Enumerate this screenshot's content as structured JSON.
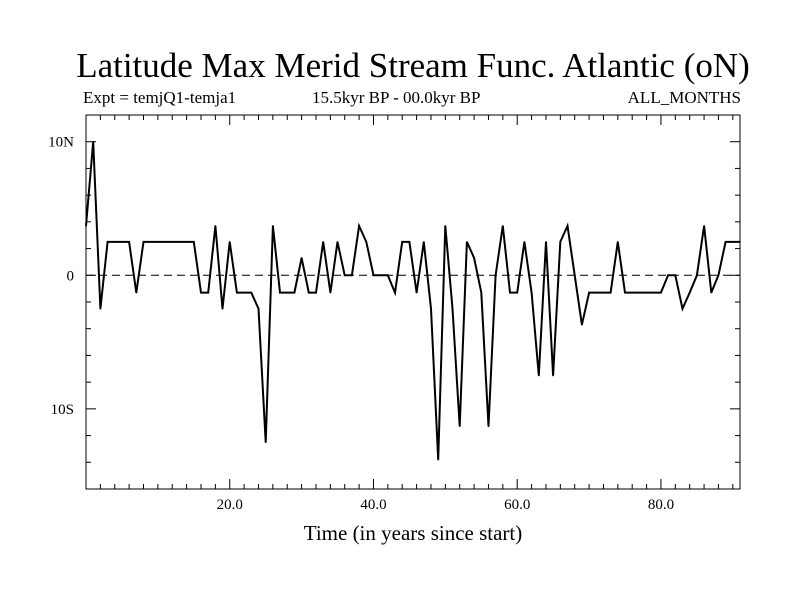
{
  "header": {
    "title": "Latitude Max Merid Stream Func. Atlantic (oN)",
    "experiment": "Expt = temjQ1-temja1",
    "period": "15.5kyr BP - 00.0kyr BP",
    "months": "ALL_MONTHS"
  },
  "chart_data": {
    "type": "line",
    "title": "Latitude Max Merid Stream Func. Atlantic (oN)",
    "xlabel": "Time (in years since start)",
    "ylabel": "",
    "xlim": [
      0,
      91
    ],
    "ylim": [
      -16,
      12
    ],
    "x_ticks": [
      20,
      40,
      60,
      80
    ],
    "x_tick_labels": [
      "20.0",
      "40.0",
      "60.0",
      "80.0"
    ],
    "y_ticks": [
      10,
      0,
      -10
    ],
    "y_tick_labels": [
      "10N",
      "0",
      "10S"
    ],
    "zero_line": "dashed",
    "grid": false,
    "x": [
      0,
      1,
      2,
      3,
      4,
      5,
      6,
      7,
      8,
      9,
      10,
      11,
      12,
      13,
      14,
      15,
      16,
      17,
      18,
      19,
      20,
      21,
      22,
      23,
      24,
      25,
      26,
      27,
      28,
      29,
      30,
      31,
      32,
      33,
      34,
      35,
      36,
      37,
      38,
      39,
      40,
      41,
      42,
      43,
      44,
      45,
      46,
      47,
      48,
      49,
      50,
      51,
      52,
      53,
      54,
      55,
      56,
      57,
      58,
      59,
      60,
      61,
      62,
      63,
      64,
      65,
      66,
      67,
      68,
      69,
      70,
      71,
      72,
      73,
      74,
      75,
      76,
      77,
      78,
      79,
      80,
      81,
      82,
      83,
      84,
      85,
      86,
      87,
      88,
      89,
      90,
      91
    ],
    "values": [
      3.7,
      10,
      -2.5,
      2.5,
      2.5,
      2.5,
      2.5,
      -1.3,
      2.5,
      2.5,
      2.5,
      2.5,
      2.5,
      2.5,
      2.5,
      2.5,
      -1.3,
      -1.3,
      3.7,
      -2.5,
      2.5,
      -1.3,
      -1.3,
      -1.3,
      -2.5,
      -12.5,
      3.7,
      -1.3,
      -1.3,
      -1.3,
      1.3,
      -1.3,
      -1.3,
      2.5,
      -1.3,
      2.5,
      0,
      0,
      3.7,
      2.5,
      0,
      0,
      0,
      -1.3,
      2.5,
      2.5,
      -1.3,
      2.5,
      -2.5,
      -13.8,
      3.7,
      -2.5,
      -11.3,
      2.5,
      1.3,
      -1.3,
      -11.3,
      0,
      3.7,
      -1.3,
      -1.3,
      2.5,
      -1.3,
      -7.5,
      2.5,
      -7.5,
      2.5,
      3.7,
      0,
      -3.7,
      -1.3,
      -1.3,
      -1.3,
      -1.3,
      2.5,
      -1.3,
      -1.3,
      -1.3,
      -1.3,
      -1.3,
      -1.3,
      0,
      0,
      -2.5,
      -1.3,
      0,
      3.7,
      -1.3,
      0,
      2.5,
      2.5,
      2.5
    ]
  }
}
